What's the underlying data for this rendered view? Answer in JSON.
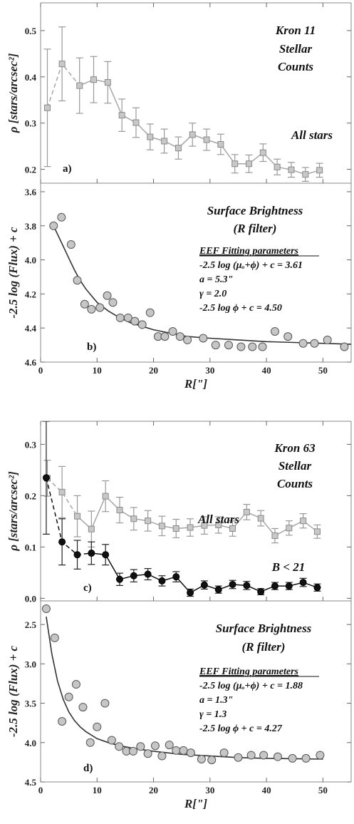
{
  "chart_data": [
    {
      "type": "line",
      "panel": "a)",
      "title_lines": [
        "Kron 11",
        "Stellar",
        "Counts"
      ],
      "ylabel": "ρ [stars/arcsec²]",
      "xlabel": "",
      "xlim": [
        0,
        55
      ],
      "ylim": [
        0.17,
        0.56
      ],
      "yticks": [
        0.2,
        0.3,
        0.4,
        0.5
      ],
      "xticks": [
        0,
        10,
        20,
        30,
        40,
        50
      ],
      "show_xtick_labels": false,
      "series": [
        {
          "name": "All stars",
          "style": "gray-squares",
          "dashed_until_index": 2,
          "x": [
            1.2,
            3.8,
            6.9,
            9.4,
            11.9,
            14.4,
            16.9,
            19.4,
            21.9,
            24.4,
            26.9,
            29.4,
            31.9,
            34.4,
            36.9,
            39.4,
            41.9,
            44.4,
            46.9,
            49.4
          ],
          "y": [
            0.333,
            0.428,
            0.381,
            0.394,
            0.388,
            0.317,
            0.301,
            0.27,
            0.261,
            0.246,
            0.275,
            0.264,
            0.254,
            0.212,
            0.212,
            0.236,
            0.205,
            0.199,
            0.189,
            0.198
          ],
          "err": [
            0.127,
            0.08,
            0.06,
            0.05,
            0.045,
            0.035,
            0.032,
            0.028,
            0.026,
            0.024,
            0.025,
            0.023,
            0.022,
            0.02,
            0.019,
            0.019,
            0.017,
            0.016,
            0.015,
            0.015
          ]
        }
      ]
    },
    {
      "type": "scatter",
      "panel": "b)",
      "title_lines": [
        "Surface Brightness",
        "(R filter)"
      ],
      "params_header": "EEF Fitting parameters",
      "params": [
        "-2.5 log (μₒ+ϕ) + c = 3.61",
        "a = 5.3\"",
        "γ = 2.0",
        "-2.5 log ϕ + c = 4.50"
      ],
      "ylabel": "-2.5 log (Flux) + c",
      "xlabel": "R[\"]",
      "xlim": [
        0,
        55
      ],
      "ylim": [
        4.6,
        3.55
      ],
      "yticks": [
        3.6,
        3.8,
        4.0,
        4.2,
        4.4,
        4.6
      ],
      "xticks": [
        0,
        10,
        20,
        30,
        40,
        50
      ],
      "series": [
        {
          "name": "",
          "style": "gray-circles",
          "x": [
            2.3,
            3.7,
            5.4,
            6.5,
            7.8,
            9.0,
            10.5,
            11.8,
            12.8,
            14.1,
            15.5,
            16.7,
            18.0,
            19.4,
            20.8,
            22.0,
            23.4,
            24.7,
            26.0,
            28.8,
            31.0,
            33.3,
            35.5,
            37.5,
            39.3,
            41.5,
            43.8,
            46.5,
            48.5,
            50.8,
            53.8
          ],
          "y": [
            3.8,
            3.75,
            3.91,
            4.12,
            4.26,
            4.29,
            4.28,
            4.21,
            4.25,
            4.34,
            4.34,
            4.36,
            4.38,
            4.31,
            4.45,
            4.45,
            4.42,
            4.45,
            4.47,
            4.46,
            4.5,
            4.5,
            4.51,
            4.51,
            4.51,
            4.42,
            4.45,
            4.49,
            4.49,
            4.47,
            4.51
          ]
        }
      ],
      "fit": {
        "name": "EEF fit",
        "x": [
          2.0,
          3.0,
          4.0,
          5.0,
          6.0,
          7.0,
          8.0,
          10.0,
          12.0,
          14.0,
          16.0,
          18.0,
          20.0,
          23.0,
          26.0,
          30.0,
          35.0,
          40.0,
          45.0,
          50.0,
          55.0
        ],
        "y": [
          3.78,
          3.85,
          3.92,
          3.99,
          4.06,
          4.12,
          4.17,
          4.25,
          4.3,
          4.34,
          4.37,
          4.39,
          4.41,
          4.43,
          4.45,
          4.46,
          4.47,
          4.48,
          4.485,
          4.49,
          4.495
        ]
      }
    },
    {
      "type": "line",
      "panel": "c)",
      "title_lines": [
        "Kron 63",
        "Stellar",
        "Counts"
      ],
      "ylabel": "ρ [stars/arcsec²]",
      "xlabel": "",
      "xlim": [
        0,
        55
      ],
      "ylim": [
        -0.005,
        0.345
      ],
      "yticks": [
        0.0,
        0.1,
        0.2,
        0.3
      ],
      "xticks": [
        0,
        10,
        20,
        30,
        40,
        50
      ],
      "show_xtick_labels": false,
      "series": [
        {
          "name": "All stars",
          "style": "gray-squares",
          "dashed_until_index": 2,
          "x": [
            1.2,
            3.8,
            6.5,
            9.0,
            11.5,
            14.0,
            16.5,
            19.0,
            21.5,
            24.0,
            26.5,
            29.0,
            31.5,
            34.0,
            36.5,
            39.0,
            41.5,
            44.0,
            46.5,
            49.0
          ],
          "y": [
            0.234,
            0.207,
            0.16,
            0.135,
            0.199,
            0.172,
            0.155,
            0.151,
            0.141,
            0.136,
            0.138,
            0.142,
            0.143,
            0.136,
            0.168,
            0.156,
            0.122,
            0.137,
            0.151,
            0.13
          ],
          "err": [
            0.035,
            0.05,
            0.04,
            0.035,
            0.03,
            0.025,
            0.022,
            0.02,
            0.019,
            0.018,
            0.017,
            0.017,
            0.016,
            0.015,
            0.015,
            0.015,
            0.014,
            0.014,
            0.014,
            0.013
          ]
        },
        {
          "name": "B < 21",
          "style": "black-circles",
          "dashed_until_index": 3,
          "x": [
            1.0,
            3.8,
            6.5,
            9.0,
            11.5,
            14.0,
            16.5,
            19.0,
            21.5,
            24.0,
            26.5,
            29.0,
            31.5,
            34.0,
            36.5,
            39.0,
            41.5,
            44.0,
            46.5,
            49.0
          ],
          "y": [
            0.235,
            0.11,
            0.085,
            0.088,
            0.085,
            0.037,
            0.044,
            0.047,
            0.034,
            0.042,
            0.011,
            0.026,
            0.017,
            0.027,
            0.025,
            0.013,
            0.024,
            0.024,
            0.031,
            0.021
          ],
          "err": [
            0.11,
            0.045,
            0.028,
            0.022,
            0.02,
            0.012,
            0.012,
            0.011,
            0.01,
            0.01,
            0.007,
            0.008,
            0.007,
            0.008,
            0.008,
            0.006,
            0.007,
            0.007,
            0.008,
            0.007
          ]
        }
      ]
    },
    {
      "type": "scatter",
      "panel": "d)",
      "title_lines": [
        "Surface Brightness",
        "(R filter)"
      ],
      "params_header": "EEF Fitting parameters",
      "params": [
        "-2.5 log (μₒ+ϕ) + c = 1.88",
        "a = 1.3\"",
        "γ = 1.3",
        "-2.5 log ϕ + c = 4.27"
      ],
      "ylabel": "-2.5 log (Flux) + c",
      "xlabel": "R[\"]",
      "xlim": [
        0,
        55
      ],
      "ylim": [
        4.5,
        2.2
      ],
      "yticks": [
        2.5,
        3.0,
        3.5,
        4.0,
        4.5
      ],
      "xticks": [
        0,
        10,
        20,
        30,
        40,
        50
      ],
      "series": [
        {
          "name": "",
          "style": "gray-circles",
          "x": [
            1.0,
            2.5,
            3.8,
            5.0,
            6.3,
            7.5,
            8.8,
            10.0,
            11.4,
            12.6,
            13.9,
            15.2,
            16.4,
            17.7,
            19.0,
            20.3,
            21.5,
            22.8,
            24.0,
            25.3,
            26.6,
            28.5,
            30.3,
            32.5,
            35.0,
            37.3,
            39.5,
            42.0,
            44.6,
            47.0,
            49.5
          ],
          "y": [
            2.3,
            2.67,
            3.73,
            3.42,
            3.26,
            3.55,
            4.0,
            3.8,
            3.5,
            3.97,
            4.05,
            4.11,
            4.11,
            4.05,
            4.14,
            4.04,
            4.17,
            4.03,
            4.1,
            4.1,
            4.13,
            4.21,
            4.22,
            4.13,
            4.19,
            4.16,
            4.16,
            4.18,
            4.2,
            4.2,
            4.16
          ]
        }
      ],
      "fit": {
        "name": "EEF fit",
        "x": [
          1.0,
          2.0,
          3.0,
          4.0,
          5.0,
          6.0,
          7.0,
          8.0,
          10.0,
          12.0,
          14.0,
          17.0,
          20.0,
          25.0,
          30.0,
          35.0,
          40.0,
          45.0,
          50.0
        ],
        "y": [
          2.4,
          2.88,
          3.22,
          3.45,
          3.61,
          3.72,
          3.8,
          3.86,
          3.95,
          4.0,
          4.04,
          4.08,
          4.11,
          4.15,
          4.17,
          4.19,
          4.2,
          4.205,
          4.21
        ]
      }
    }
  ]
}
